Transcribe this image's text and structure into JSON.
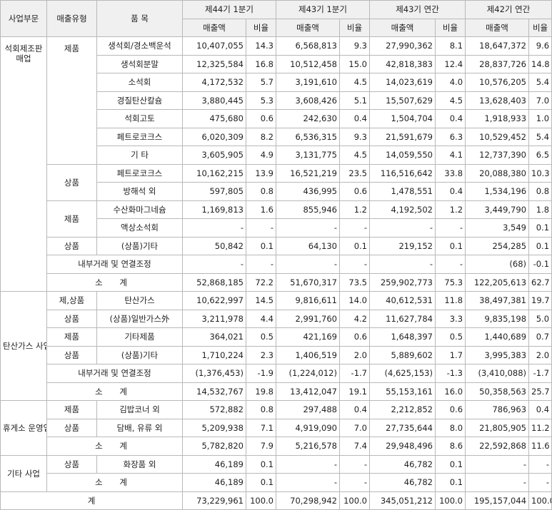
{
  "header": {
    "division": "사업부문",
    "sales_type": "매출유형",
    "item": "품 목",
    "periods": [
      "제44기 1분기",
      "제43기 1분기",
      "제43기 연간",
      "제42기 연간"
    ],
    "amount": "매출액",
    "ratio": "비율"
  },
  "divisions": [
    {
      "name": "석회제조판매업",
      "rows": [
        {
          "type": "제품",
          "item": "생석회/경소백운석",
          "v": [
            "10,407,055",
            "14.3",
            "6,568,813",
            "9.3",
            "27,990,362",
            "8.1",
            "18,647,372",
            "9.6"
          ]
        },
        {
          "type": "",
          "item": "생석회분말",
          "v": [
            "12,325,584",
            "16.8",
            "10,512,458",
            "15.0",
            "42,818,383",
            "12.4",
            "28,837,726",
            "14.8"
          ]
        },
        {
          "type": "",
          "item": "소석회",
          "v": [
            "4,172,532",
            "5.7",
            "3,191,610",
            "4.5",
            "14,023,619",
            "4.0",
            "10,576,205",
            "5.4"
          ]
        },
        {
          "type": "",
          "item": "경질탄산칼슘",
          "v": [
            "3,880,445",
            "5.3",
            "3,608,426",
            "5.1",
            "15,507,629",
            "4.5",
            "13,628,403",
            "7.0"
          ]
        },
        {
          "type": "",
          "item": "석회고토",
          "v": [
            "475,680",
            "0.6",
            "242,630",
            "0.4",
            "1,504,704",
            "0.4",
            "1,918,933",
            "1.0"
          ]
        },
        {
          "type": "",
          "item": "페트로코크스",
          "v": [
            "6,020,309",
            "8.2",
            "6,536,315",
            "9.3",
            "21,591,679",
            "6.3",
            "10,529,452",
            "5.4"
          ]
        },
        {
          "type": "",
          "item": "기 타",
          "v": [
            "3,605,905",
            "4.9",
            "3,131,775",
            "4.5",
            "14,059,550",
            "4.1",
            "12,737,390",
            "6.5"
          ]
        },
        {
          "type": "상품",
          "item": "페트로코크스",
          "v": [
            "10,162,215",
            "13.9",
            "16,521,219",
            "23.5",
            "116,516,642",
            "33.8",
            "20,088,380",
            "10.3"
          ]
        },
        {
          "type": "",
          "item": "방해석 외",
          "v": [
            "597,805",
            "0.8",
            "436,995",
            "0.6",
            "1,478,551",
            "0.4",
            "1,534,196",
            "0.8"
          ]
        },
        {
          "type": "제품",
          "item": "수산화마그네슘",
          "v": [
            "1,169,813",
            "1.6",
            "855,946",
            "1.2",
            "4,192,502",
            "1.2",
            "3,449,790",
            "1.8"
          ]
        },
        {
          "type": "",
          "item": "액상소석회",
          "v": [
            "-",
            "-",
            "-",
            "-",
            "-",
            "-",
            "3,549",
            "0.1"
          ]
        },
        {
          "type": "상품",
          "item": "(상품)기타",
          "v": [
            "50,842",
            "0.1",
            "64,130",
            "0.1",
            "219,152",
            "0.1",
            "254,285",
            "0.1"
          ]
        }
      ],
      "adjustment": {
        "label": "내부거래 및 연결조정",
        "v": [
          "-",
          "-",
          "-",
          "-",
          "-",
          "-",
          "(68)",
          "-0.1"
        ]
      },
      "subtotal": {
        "label": "소 계",
        "v": [
          "52,868,185",
          "72.2",
          "51,670,317",
          "73.5",
          "259,902,773",
          "75.3",
          "122,205,613",
          "62.7"
        ]
      }
    },
    {
      "name": "탄산가스 사업",
      "rows": [
        {
          "type": "제,상품",
          "item": "탄산가스",
          "v": [
            "10,622,997",
            "14.5",
            "9,816,611",
            "14.0",
            "40,612,531",
            "11.8",
            "38,497,381",
            "19.7"
          ]
        },
        {
          "type": "상품",
          "item": "(상품)일반가스外",
          "v": [
            "3,211,978",
            "4.4",
            "2,991,760",
            "4.2",
            "11,627,784",
            "3.3",
            "9,835,198",
            "5.0"
          ]
        },
        {
          "type": "제품",
          "item": "기타제품",
          "v": [
            "364,021",
            "0.5",
            "421,169",
            "0.6",
            "1,648,397",
            "0.5",
            "1,440,689",
            "0.7"
          ]
        },
        {
          "type": "상품",
          "item": "(상품)기타",
          "v": [
            "1,710,224",
            "2.3",
            "1,406,519",
            "2.0",
            "5,889,602",
            "1.7",
            "3,995,383",
            "2.0"
          ]
        }
      ],
      "adjustment": {
        "label": "내부거래 및 연결조정",
        "v": [
          "(1,376,453)",
          "-1.9",
          "(1,224,012)",
          "-1.7",
          "(4,625,153)",
          "-1.3",
          "(3,410,088)",
          "-1.7"
        ]
      },
      "subtotal": {
        "label": "소 계",
        "v": [
          "14,532,767",
          "19.8",
          "13,412,047",
          "19.1",
          "55,153,161",
          "16.0",
          "50,358,563",
          "25.7"
        ]
      }
    },
    {
      "name": "휴게소 운영업",
      "rows": [
        {
          "type": "제품",
          "item": "김밥코너 외",
          "v": [
            "572,882",
            "0.8",
            "297,488",
            "0.4",
            "2,212,852",
            "0.6",
            "786,963",
            "0.4"
          ]
        },
        {
          "type": "상품",
          "item": "담배, 유류 외",
          "v": [
            "5,209,938",
            "7.1",
            "4,919,090",
            "7.0",
            "27,735,644",
            "8.0",
            "21,805,905",
            "11.2"
          ]
        }
      ],
      "subtotal": {
        "label": "소 계",
        "v": [
          "5,782,820",
          "7.9",
          "5,216,578",
          "7.4",
          "29,948,496",
          "8.6",
          "22,592,868",
          "11.6"
        ]
      }
    },
    {
      "name": "기타 사업",
      "rows": [
        {
          "type": "상품",
          "item": "화장품 외",
          "v": [
            "46,189",
            "0.1",
            "-",
            "-",
            "46,782",
            "0.1",
            "-",
            "-"
          ]
        }
      ],
      "subtotal": {
        "label": "소 계",
        "v": [
          "46,189",
          "0.1",
          "-",
          "-",
          "46,782",
          "0.1",
          "-",
          "-"
        ]
      }
    }
  ],
  "total": {
    "label": "계",
    "v": [
      "73,229,961",
      "100.0",
      "70,298,942",
      "100.0",
      "345,051,212",
      "100.0",
      "195,157,044",
      "100.0"
    ]
  }
}
